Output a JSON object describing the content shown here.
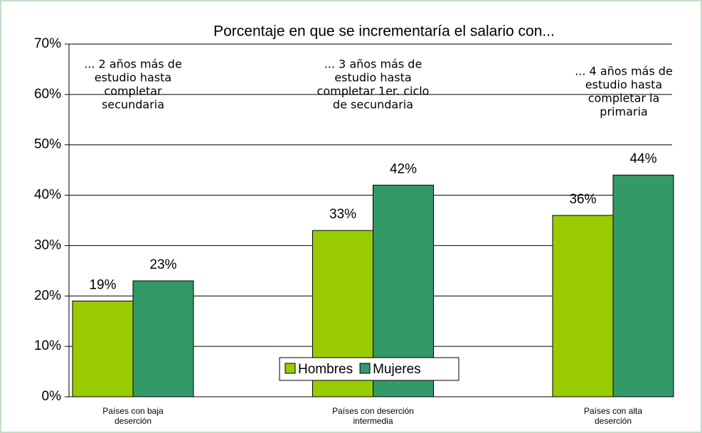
{
  "chart_data": {
    "type": "bar",
    "title": "Porcentaje en que se incrementaría el salario con...",
    "categories": [
      "Países con baja deserción",
      "Países con deserción intermedia",
      "Países con alta deserción"
    ],
    "annotations": [
      [
        "... 2 años más de",
        "estudio hasta",
        "completar",
        "secundaria"
      ],
      [
        "... 3 años más de",
        "estudio hasta",
        "completar 1er. ciclo",
        "de secundaria"
      ],
      [
        "... 4 años más de",
        "estudio hasta",
        "completar la",
        "primaria"
      ]
    ],
    "series": [
      {
        "name": "Hombres",
        "color": "#99cc00",
        "values": [
          19,
          33,
          36
        ],
        "value_labels": [
          "19%",
          "33%",
          "36%"
        ]
      },
      {
        "name": "Mujeres",
        "color": "#339966",
        "values": [
          23,
          42,
          44
        ],
        "value_labels": [
          "23%",
          "42%",
          "44%"
        ]
      }
    ],
    "ylim": [
      0,
      70
    ],
    "yticks": [
      {
        "value": 0,
        "label": "0%"
      },
      {
        "value": 10,
        "label": "10%"
      },
      {
        "value": 20,
        "label": "20%"
      },
      {
        "value": 30,
        "label": "30%"
      },
      {
        "value": 40,
        "label": "40%"
      },
      {
        "value": 50,
        "label": "50%"
      },
      {
        "value": 60,
        "label": "60%"
      },
      {
        "value": 70,
        "label": "70%"
      }
    ],
    "grid": true,
    "legend": "bottom"
  }
}
